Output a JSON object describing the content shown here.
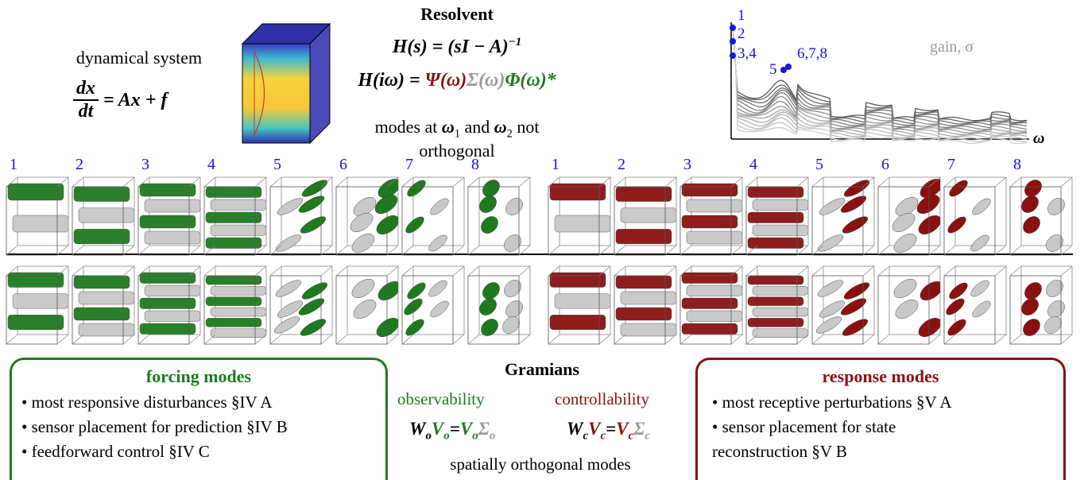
{
  "system": {
    "label": "dynamical system",
    "numerator": "dx",
    "denominator": "dt",
    "rhs": "= Ax + f"
  },
  "resolvent": {
    "title": "Resolvent",
    "equation": "H(s) = (sI − A)",
    "exponent": "−1",
    "svd_lhs": "H(iω) = ",
    "psi": "Ψ(ω)",
    "sigma": "Σ(ω)",
    "phi": "Φ(ω)*",
    "note": {
      "a": "modes at ",
      "w1": "ω",
      "s1": "1",
      "b": " and ",
      "w2": "ω",
      "s2": "2",
      "c": " not orthogonal"
    }
  },
  "gain_plot": {
    "series_label": "gain, σ",
    "x_label": "ω",
    "peaks": [
      "1",
      "2",
      "3,4",
      "5",
      "6,7,8"
    ]
  },
  "modes": {
    "forcing": [
      "1",
      "2",
      "3",
      "4",
      "5",
      "6",
      "7",
      "8"
    ],
    "response": [
      "1",
      "2",
      "3",
      "4",
      "5",
      "6",
      "7",
      "8"
    ]
  },
  "forcing_box": {
    "title": "forcing modes",
    "items": [
      "most responsive disturbances §IV A",
      "sensor placement for prediction §IV B",
      "feedforward control §IV C"
    ]
  },
  "gramians": {
    "title": "Gramians",
    "observability": "observability",
    "controllability": "controllability",
    "obs_eq": {
      "w": "W",
      "wsub": "o",
      "v": "V",
      "vsub": "o",
      "eq": "=",
      "v2": "V",
      "v2sub": "o",
      "s": "Σ",
      "ssub": "o"
    },
    "con_eq": {
      "w": "W",
      "wsub": "c",
      "v": "V",
      "vsub": "c",
      "eq": "=",
      "v2": "V",
      "v2sub": "c",
      "s": "Σ",
      "ssub": "c"
    },
    "note": "spatially orthogonal modes"
  },
  "response_box": {
    "title": "response modes",
    "items": [
      "most receptive perturbations §V A",
      "sensor placement for state reconstruction §V B"
    ]
  }
}
